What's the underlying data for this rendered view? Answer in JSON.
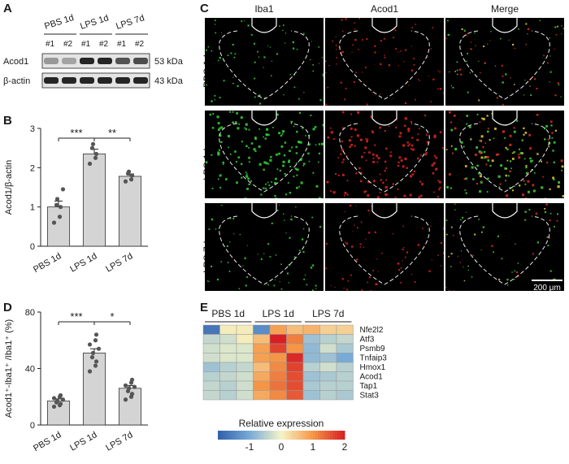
{
  "panel_letters": {
    "a": "A",
    "b": "B",
    "c": "C",
    "d": "D",
    "e": "E"
  },
  "western_blot": {
    "groups": [
      "PBS 1d",
      "LPS 1d",
      "LPS 7d"
    ],
    "lanes": [
      "#1",
      "#2",
      "#1",
      "#2",
      "#1",
      "#2"
    ],
    "proteins": [
      {
        "name": "Acod1",
        "size": "53 kDa",
        "intensity": [
          0.45,
          0.4,
          0.95,
          0.95,
          0.75,
          0.78
        ]
      },
      {
        "name": "β-actin",
        "size": "43 kDa",
        "intensity": [
          0.95,
          0.95,
          0.95,
          0.95,
          0.95,
          0.95
        ]
      }
    ]
  },
  "microscopy": {
    "columns": [
      "Iba1",
      "Acod1",
      "Merge"
    ],
    "rows": [
      "PBS 1d",
      "LPS 1d",
      "LPS 7d"
    ],
    "scale_bar": "200 μm"
  },
  "chart_data": [
    {
      "type": "bar",
      "panel": "B",
      "categories": [
        "PBS 1d",
        "LPS 1d",
        "LPS 7d"
      ],
      "values": [
        1.0,
        2.35,
        1.78
      ],
      "errors": [
        0.15,
        0.12,
        0.06
      ],
      "points": [
        [
          0.6,
          0.75,
          1.0,
          1.05,
          1.2,
          1.45
        ],
        [
          2.1,
          2.25,
          2.35,
          2.5,
          2.6
        ],
        [
          1.65,
          1.7,
          1.8,
          1.85,
          1.9
        ]
      ],
      "ylabel": "Acod1/β-actin",
      "ylim": [
        0,
        3
      ],
      "yticks": [
        0,
        1,
        2,
        3
      ],
      "significance": [
        {
          "pair": [
            0,
            1
          ],
          "label": "***"
        },
        {
          "pair": [
            1,
            2
          ],
          "label": "**"
        }
      ]
    },
    {
      "type": "bar",
      "panel": "D",
      "categories": [
        "PBS 1d",
        "LPS 1d",
        "LPS 7d"
      ],
      "values": [
        17,
        51,
        26
      ],
      "errors": [
        1.5,
        3,
        2
      ],
      "points": [
        [
          13,
          14,
          15,
          16,
          17,
          18,
          19,
          20,
          21
        ],
        [
          38,
          42,
          45,
          48,
          51,
          54,
          57,
          60,
          64
        ],
        [
          18,
          20,
          22,
          24,
          26,
          27,
          28,
          30,
          32
        ]
      ],
      "ylabel": "Acod1⁺-Iba1⁺ /Iba1⁺ (%)",
      "ylim": [
        0,
        80
      ],
      "yticks": [
        0,
        40,
        80
      ],
      "significance": [
        {
          "pair": [
            0,
            1
          ],
          "label": "***"
        },
        {
          "pair": [
            1,
            2
          ],
          "label": "*"
        }
      ]
    },
    {
      "type": "heatmap",
      "panel": "E",
      "groups": [
        "PBS 1d",
        "LPS 1d",
        "LPS 7d"
      ],
      "rows": [
        "Nfe2l2",
        "Atf3",
        "Psmb9",
        "Tnfaip3",
        "Hmox1",
        "Acod1",
        "Tap1",
        "Stat3"
      ],
      "values": [
        [
          -1.7,
          0.1,
          0.1,
          -1.4,
          0.9,
          0.6,
          0.7,
          0.4,
          0.4
        ],
        [
          -0.4,
          -0.3,
          0.1,
          0.6,
          2.0,
          1.2,
          -0.7,
          -0.5,
          -0.4
        ],
        [
          -0.3,
          -0.2,
          -0.2,
          0.9,
          1.7,
          1.0,
          -0.8,
          -0.3,
          -0.6
        ],
        [
          -0.3,
          -0.2,
          -0.2,
          0.9,
          1.0,
          1.9,
          -0.8,
          -0.7,
          -1.0
        ],
        [
          -0.7,
          -0.5,
          -0.4,
          0.6,
          1.1,
          1.7,
          -0.5,
          -0.3,
          -0.5
        ],
        [
          -0.5,
          -0.4,
          -0.3,
          0.8,
          1.2,
          1.6,
          -0.7,
          -0.6,
          -0.5
        ],
        [
          -0.4,
          -0.5,
          -0.3,
          1.0,
          1.3,
          1.6,
          -0.6,
          -0.5,
          -0.5
        ],
        [
          -0.4,
          -0.5,
          -0.3,
          0.8,
          1.1,
          1.5,
          -0.7,
          -0.5,
          -0.6
        ]
      ],
      "colorbar_title": "Relative expression",
      "colorbar_ticks": [
        "-1",
        "0",
        "1",
        "2"
      ],
      "vmin": -2,
      "vmax": 2
    }
  ]
}
